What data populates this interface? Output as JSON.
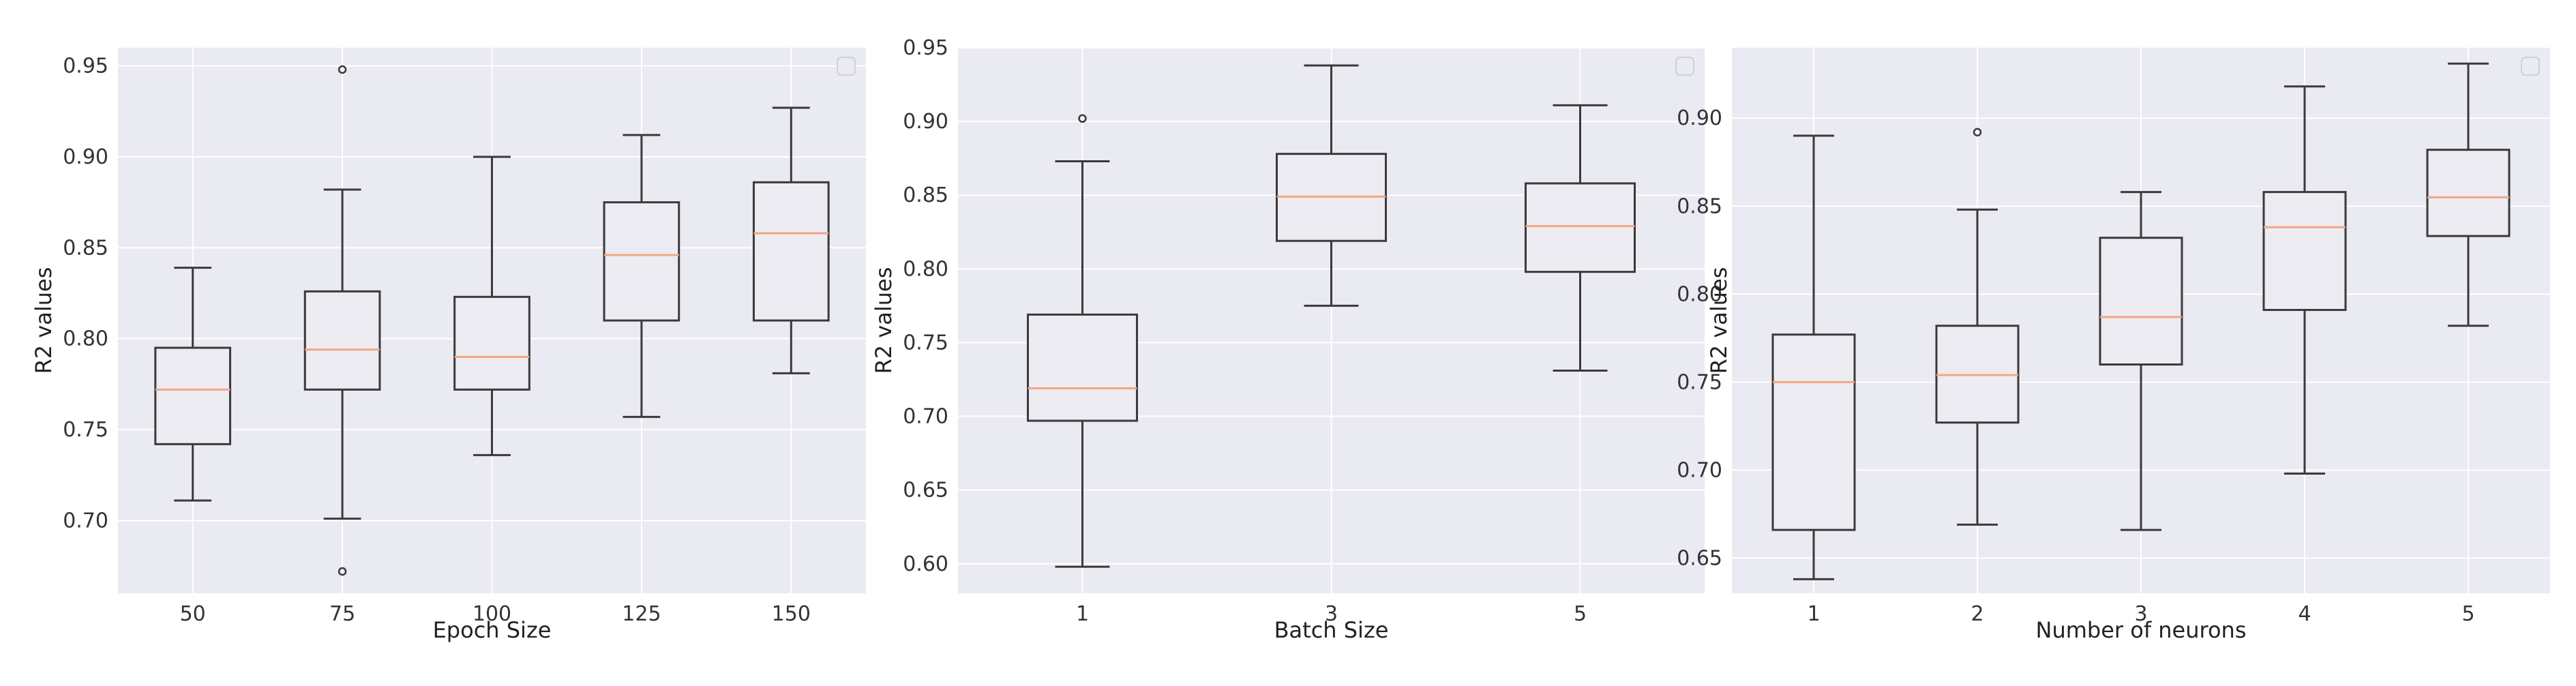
{
  "chart_data": [
    {
      "type": "box",
      "xlabel": "Epoch Size",
      "ylabel": "R2 values",
      "categories": [
        "50",
        "75",
        "100",
        "125",
        "150"
      ],
      "ylim": [
        0.66,
        0.96
      ],
      "yticks": [
        0.7,
        0.75,
        0.8,
        0.85,
        0.9,
        0.95
      ],
      "boxes": [
        {
          "whislo": 0.711,
          "q1": 0.742,
          "med": 0.772,
          "q3": 0.795,
          "whishi": 0.839,
          "fliers": []
        },
        {
          "whislo": 0.701,
          "q1": 0.772,
          "med": 0.794,
          "q3": 0.826,
          "whishi": 0.882,
          "fliers": [
            0.948,
            0.672
          ]
        },
        {
          "whislo": 0.736,
          "q1": 0.772,
          "med": 0.79,
          "q3": 0.823,
          "whishi": 0.9,
          "fliers": []
        },
        {
          "whislo": 0.757,
          "q1": 0.81,
          "med": 0.846,
          "q3": 0.875,
          "whishi": 0.912,
          "fliers": []
        },
        {
          "whislo": 0.781,
          "q1": 0.81,
          "med": 0.858,
          "q3": 0.886,
          "whishi": 0.927,
          "fliers": []
        }
      ],
      "grid": true,
      "legend": "top-right"
    },
    {
      "type": "box",
      "xlabel": "Batch Size",
      "ylabel": "R2 values",
      "categories": [
        "1",
        "3",
        "5"
      ],
      "ylim": [
        0.58,
        0.95
      ],
      "yticks": [
        0.6,
        0.65,
        0.7,
        0.75,
        0.8,
        0.85,
        0.9,
        0.95
      ],
      "boxes": [
        {
          "whislo": 0.598,
          "q1": 0.697,
          "med": 0.719,
          "q3": 0.769,
          "whishi": 0.873,
          "fliers": [
            0.902
          ]
        },
        {
          "whislo": 0.775,
          "q1": 0.819,
          "med": 0.849,
          "q3": 0.878,
          "whishi": 0.938,
          "fliers": []
        },
        {
          "whislo": 0.731,
          "q1": 0.798,
          "med": 0.829,
          "q3": 0.858,
          "whishi": 0.911,
          "fliers": []
        }
      ],
      "grid": true,
      "legend": "top-right"
    },
    {
      "type": "box",
      "xlabel": "Number of neurons",
      "ylabel": "R2 values",
      "categories": [
        "1",
        "2",
        "3",
        "4",
        "5"
      ],
      "ylim": [
        0.63,
        0.94
      ],
      "yticks": [
        0.65,
        0.7,
        0.75,
        0.8,
        0.85,
        0.9
      ],
      "boxes": [
        {
          "whislo": 0.638,
          "q1": 0.666,
          "med": 0.75,
          "q3": 0.777,
          "whishi": 0.89,
          "fliers": []
        },
        {
          "whislo": 0.669,
          "q1": 0.727,
          "med": 0.754,
          "q3": 0.782,
          "whishi": 0.848,
          "fliers": [
            0.892
          ]
        },
        {
          "whislo": 0.666,
          "q1": 0.76,
          "med": 0.787,
          "q3": 0.832,
          "whishi": 0.858,
          "fliers": []
        },
        {
          "whislo": 0.698,
          "q1": 0.791,
          "med": 0.838,
          "q3": 0.858,
          "whishi": 0.918,
          "fliers": []
        },
        {
          "whislo": 0.782,
          "q1": 0.833,
          "med": 0.855,
          "q3": 0.882,
          "whishi": 0.931,
          "fliers": []
        }
      ],
      "grid": true,
      "legend": "top-right"
    }
  ]
}
